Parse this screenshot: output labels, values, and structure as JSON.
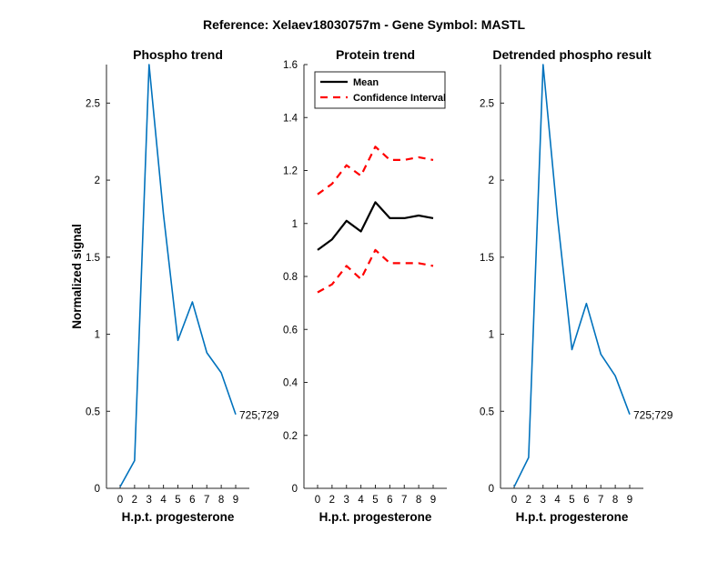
{
  "figure": {
    "title": "Reference:  Xelaev18030757m - Gene Symbol:  MASTL"
  },
  "chart_data": [
    {
      "type": "line",
      "title": "Phospho trend",
      "xlabel": "H.p.t. progesterone",
      "ylabel": "Normalized signal",
      "x_ticks": [
        "0",
        "2",
        "3",
        "4",
        "5",
        "6",
        "7",
        "8",
        "9"
      ],
      "y_ticks": [
        "0",
        "0.5",
        "1",
        "1.5",
        "2",
        "2.5"
      ],
      "ylim": [
        0,
        2.75
      ],
      "series": [
        {
          "color": "#0072BD",
          "values": [
            0.01,
            0.18,
            2.75,
            1.78,
            0.96,
            1.21,
            0.88,
            0.75,
            0.48
          ],
          "end_label": "725;729"
        }
      ],
      "grid": false
    },
    {
      "type": "line",
      "title": "Protein trend",
      "xlabel": "H.p.t. progesterone",
      "ylabel": "",
      "x_ticks": [
        "0",
        "2",
        "3",
        "4",
        "5",
        "6",
        "7",
        "8",
        "9"
      ],
      "y_ticks": [
        "0",
        "0.2",
        "0.4",
        "0.6",
        "0.8",
        "1",
        "1.2",
        "1.4",
        "1.6"
      ],
      "ylim": [
        0,
        1.6
      ],
      "legend": {
        "position": "top-left",
        "entries": [
          "Mean",
          "Confidence Interval"
        ]
      },
      "series": [
        {
          "name": "Mean",
          "color": "#000000",
          "dash": false,
          "values": [
            0.9,
            0.94,
            1.01,
            0.97,
            1.08,
            1.02,
            1.02,
            1.03,
            1.02
          ]
        },
        {
          "name": "Confidence Interval",
          "color": "#FF0000",
          "dash": true,
          "values": [
            1.11,
            1.15,
            1.22,
            1.18,
            1.29,
            1.24,
            1.24,
            1.25,
            1.24
          ]
        },
        {
          "color": "#FF0000",
          "dash": true,
          "values": [
            0.74,
            0.77,
            0.84,
            0.79,
            0.9,
            0.85,
            0.85,
            0.85,
            0.84
          ]
        }
      ],
      "grid": false
    },
    {
      "type": "line",
      "title": "Detrended phospho result",
      "xlabel": "H.p.t. progesterone",
      "ylabel": "",
      "x_ticks": [
        "0",
        "2",
        "3",
        "4",
        "5",
        "6",
        "7",
        "8",
        "9"
      ],
      "y_ticks": [
        "0",
        "0.5",
        "1",
        "1.5",
        "2",
        "2.5"
      ],
      "ylim": [
        0,
        2.75
      ],
      "series": [
        {
          "color": "#0072BD",
          "values": [
            0.01,
            0.2,
            2.75,
            1.76,
            0.9,
            1.2,
            0.87,
            0.73,
            0.48
          ],
          "end_label": "725;729"
        }
      ],
      "grid": false
    }
  ]
}
